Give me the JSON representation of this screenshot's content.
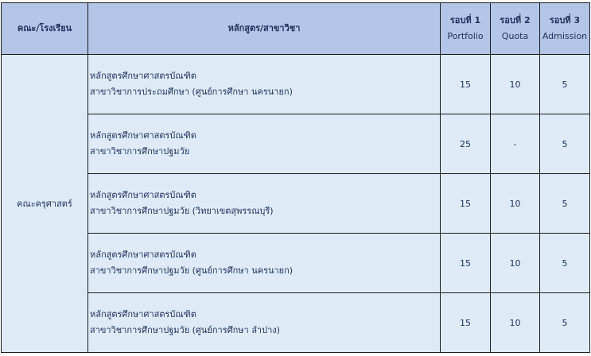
{
  "header": {
    "faculty": "คณะ/โรงเรียน",
    "program": "หลักสูตร/สาขาวิชา",
    "round1": {
      "title": "รอบที่ 1",
      "sub": "Portfolio"
    },
    "round2": {
      "title": "รอบที่ 2",
      "sub": "Quota"
    },
    "round3": {
      "title": "รอบที่ 3",
      "sub": "Admission"
    }
  },
  "faculty": "คณะครุศาสตร์",
  "rows": [
    {
      "line1": "หลักสูตรศึกษาศาสตรบัณฑิต",
      "line2": "สาขาวิชาการประถมศึกษา (ศูนย์การศึกษา นครนายก)",
      "r1": "15",
      "r2": "10",
      "r3": "5"
    },
    {
      "line1": "หลักสูตรศึกษาศาสตรบัณฑิต",
      "line2": "สาขาวิชาการศึกษาปฐมวัย",
      "r1": "25",
      "r2": "-",
      "r3": "5"
    },
    {
      "line1": "หลักสูตรศึกษาศาสตรบัณฑิต",
      "line2": "สาขาวิชาการศึกษาปฐมวัย (วิทยาเขตสุพรรณบุรี)",
      "r1": "15",
      "r2": "10",
      "r3": "5"
    },
    {
      "line1": "หลักสูตรศึกษาศาสตรบัณฑิต",
      "line2": "สาขาวิชาการศึกษาปฐมวัย (ศูนย์การศึกษา นครนายก)",
      "r1": "15",
      "r2": "10",
      "r3": "5"
    },
    {
      "line1": "หลักสูตรศึกษาศาสตรบัณฑิต",
      "line2": "สาขาวิชาการศึกษาปฐมวัย (ศูนย์การศึกษา ลำปาง)",
      "r1": "15",
      "r2": "10",
      "r3": "5"
    }
  ],
  "colors": {
    "header_bg": "#b4c6e7",
    "body_bg": "#deebf7",
    "text": "#1f2f5c"
  }
}
